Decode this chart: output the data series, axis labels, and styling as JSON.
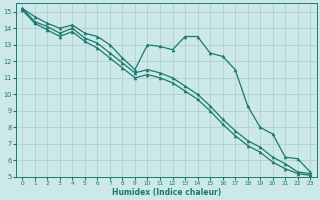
{
  "xlabel": "Humidex (Indice chaleur)",
  "background_color": "#cce8e8",
  "grid_color": "#aacccc",
  "line_color": "#1a7a6e",
  "xlim": [
    -0.5,
    23.5
  ],
  "ylim": [
    5,
    15.5
  ],
  "xticks": [
    0,
    1,
    2,
    3,
    4,
    5,
    6,
    7,
    8,
    9,
    10,
    11,
    12,
    13,
    14,
    15,
    16,
    17,
    18,
    19,
    20,
    21,
    22,
    23
  ],
  "yticks": [
    5,
    6,
    7,
    8,
    9,
    10,
    11,
    12,
    13,
    14,
    15
  ],
  "line1_x": [
    0,
    1,
    2,
    3,
    4,
    5,
    6,
    7,
    8,
    9,
    10,
    11,
    12,
    13,
    14,
    15,
    16,
    17,
    18,
    19,
    20,
    21,
    22,
    23
  ],
  "line1_y": [
    15.2,
    14.7,
    14.3,
    14.0,
    14.2,
    13.7,
    13.5,
    13.0,
    12.2,
    11.5,
    13.0,
    12.9,
    12.7,
    13.5,
    13.5,
    12.5,
    12.3,
    11.5,
    9.3,
    8.0,
    7.6,
    6.2,
    6.1,
    5.3
  ],
  "line2_x": [
    0,
    1,
    2,
    3,
    4,
    5,
    6,
    7,
    8,
    9,
    10,
    11,
    12,
    13,
    14,
    15,
    16,
    17,
    18,
    19,
    20,
    21,
    22,
    23
  ],
  "line2_y": [
    15.2,
    14.4,
    14.1,
    13.7,
    14.0,
    13.4,
    13.1,
    12.5,
    11.9,
    11.3,
    11.5,
    11.3,
    11.0,
    10.5,
    10.0,
    9.3,
    8.5,
    7.8,
    7.2,
    6.8,
    6.2,
    5.8,
    5.3,
    5.2
  ],
  "line3_x": [
    0,
    1,
    2,
    3,
    4,
    5,
    6,
    7,
    8,
    9,
    10,
    11,
    12,
    13,
    14,
    15,
    16,
    17,
    18,
    19,
    20,
    21,
    22,
    23
  ],
  "line3_y": [
    15.1,
    14.3,
    13.9,
    13.5,
    13.8,
    13.2,
    12.8,
    12.2,
    11.6,
    11.0,
    11.2,
    11.0,
    10.7,
    10.2,
    9.7,
    9.0,
    8.2,
    7.5,
    6.9,
    6.5,
    5.9,
    5.5,
    5.2,
    5.1
  ]
}
